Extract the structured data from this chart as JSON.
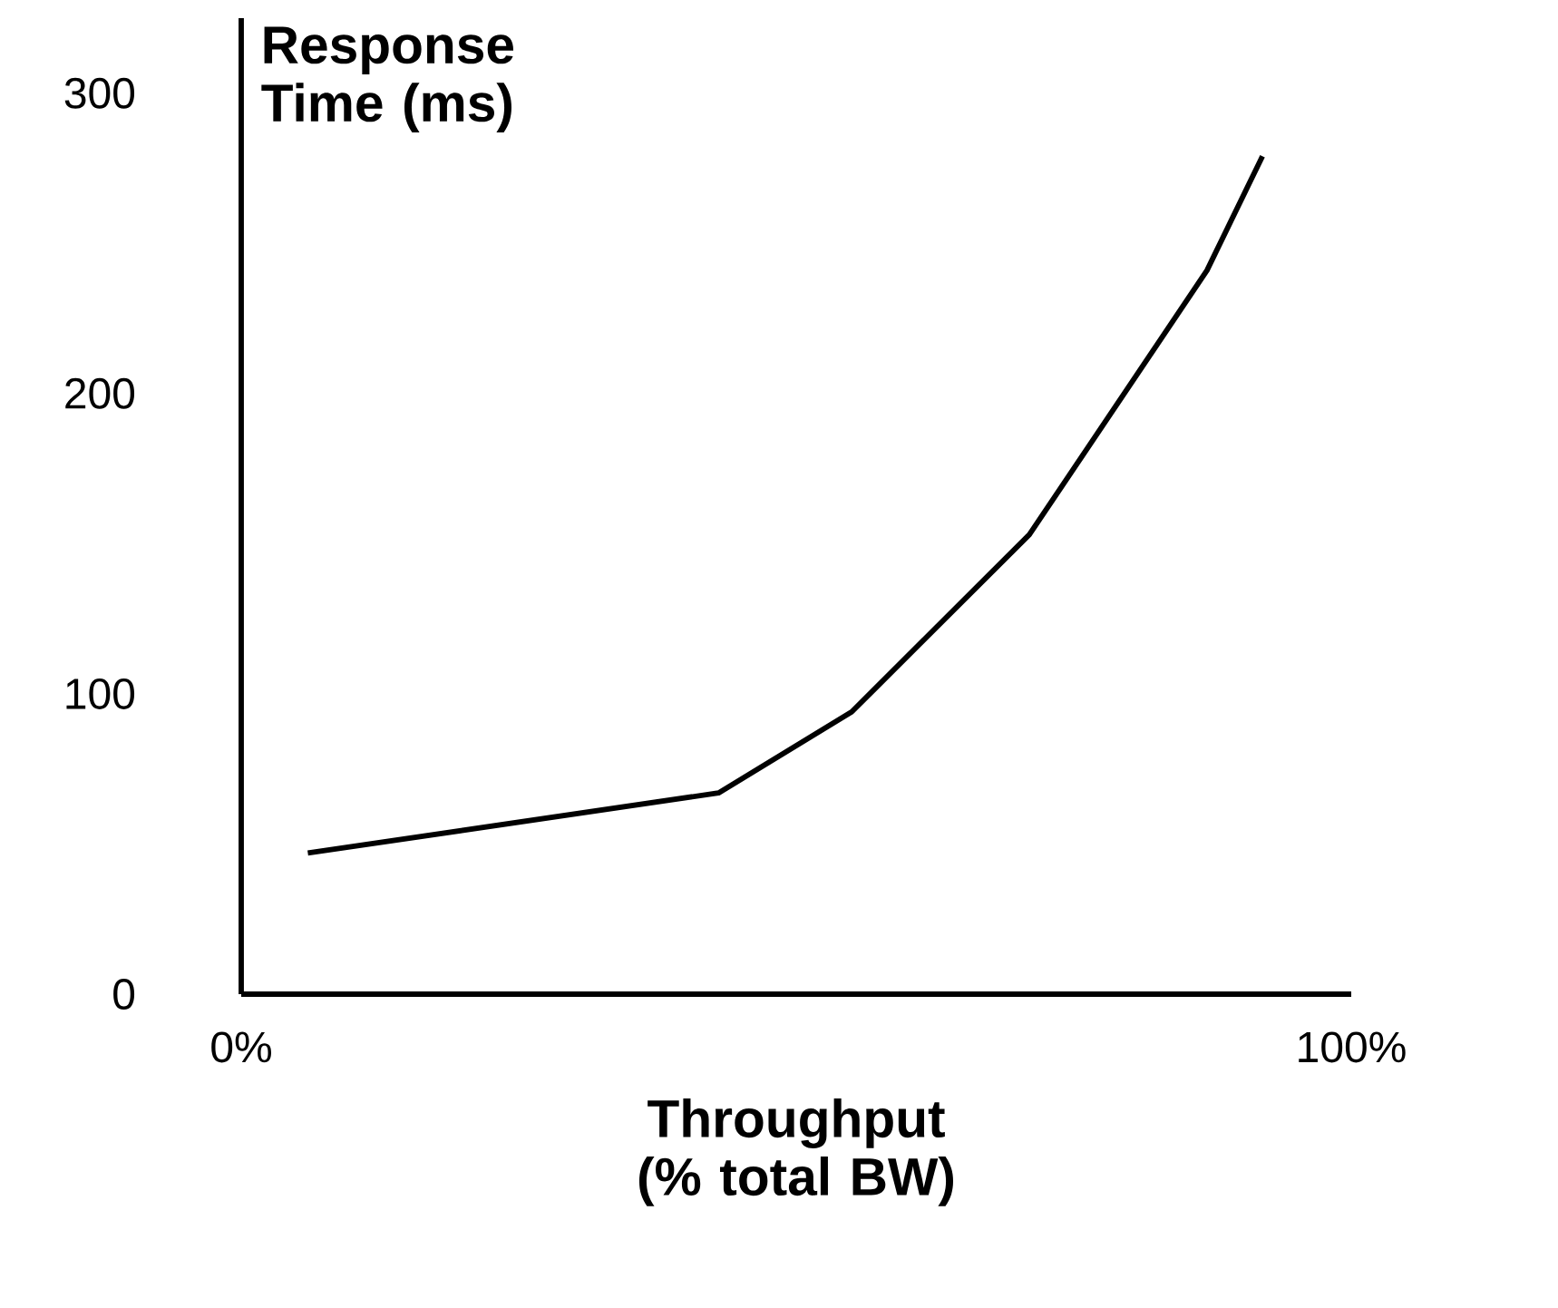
{
  "chart_data": {
    "type": "line",
    "xlabel": "Throughput (% total BW)",
    "ylabel": "Response Time (ms)",
    "x": [
      6,
      43,
      55,
      71,
      87,
      92
    ],
    "series": [
      {
        "color": "#000000",
        "values": [
          47,
          67,
          94,
          153,
          241,
          279
        ]
      }
    ],
    "xlim": [
      0,
      100
    ],
    "ylim": [
      0,
      325
    ],
    "xticks": [
      {
        "value": 0,
        "label": "0%"
      },
      {
        "value": 100,
        "label": "100%"
      }
    ],
    "yticks": [
      0,
      100,
      200,
      300
    ],
    "grid": false,
    "marker": "none",
    "line_style": "solid"
  }
}
